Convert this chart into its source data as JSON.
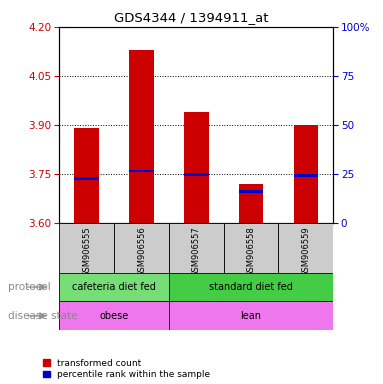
{
  "title": "GDS4344 / 1394911_at",
  "samples": [
    "GSM906555",
    "GSM906556",
    "GSM906557",
    "GSM906558",
    "GSM906559"
  ],
  "bar_values": [
    3.89,
    4.13,
    3.94,
    3.72,
    3.9
  ],
  "bar_bottom": 3.6,
  "percentile_values": [
    3.735,
    3.758,
    3.748,
    3.695,
    3.745
  ],
  "ylim_left": [
    3.6,
    4.2
  ],
  "ylim_right": [
    0,
    100
  ],
  "yticks_left": [
    3.6,
    3.75,
    3.9,
    4.05,
    4.2
  ],
  "yticks_right": [
    0,
    25,
    50,
    75,
    100
  ],
  "bar_color": "#cc0000",
  "percentile_color": "#0000cc",
  "protocol_col1_color": "#77dd77",
  "protocol_col2_color": "#44cc44",
  "disease_col1_color": "#ee77ee",
  "disease_col2_color": "#ee77ee",
  "sample_bg_color": "#cccccc",
  "protocol_label": "protocol",
  "disease_label": "disease state",
  "legend_red_label": "transformed count",
  "legend_blue_label": "percentile rank within the sample",
  "bg_color": "#ffffff",
  "tick_color_left": "#cc0000",
  "tick_color_right": "#0000cc",
  "n_cafeteria": 2,
  "n_standard": 3
}
